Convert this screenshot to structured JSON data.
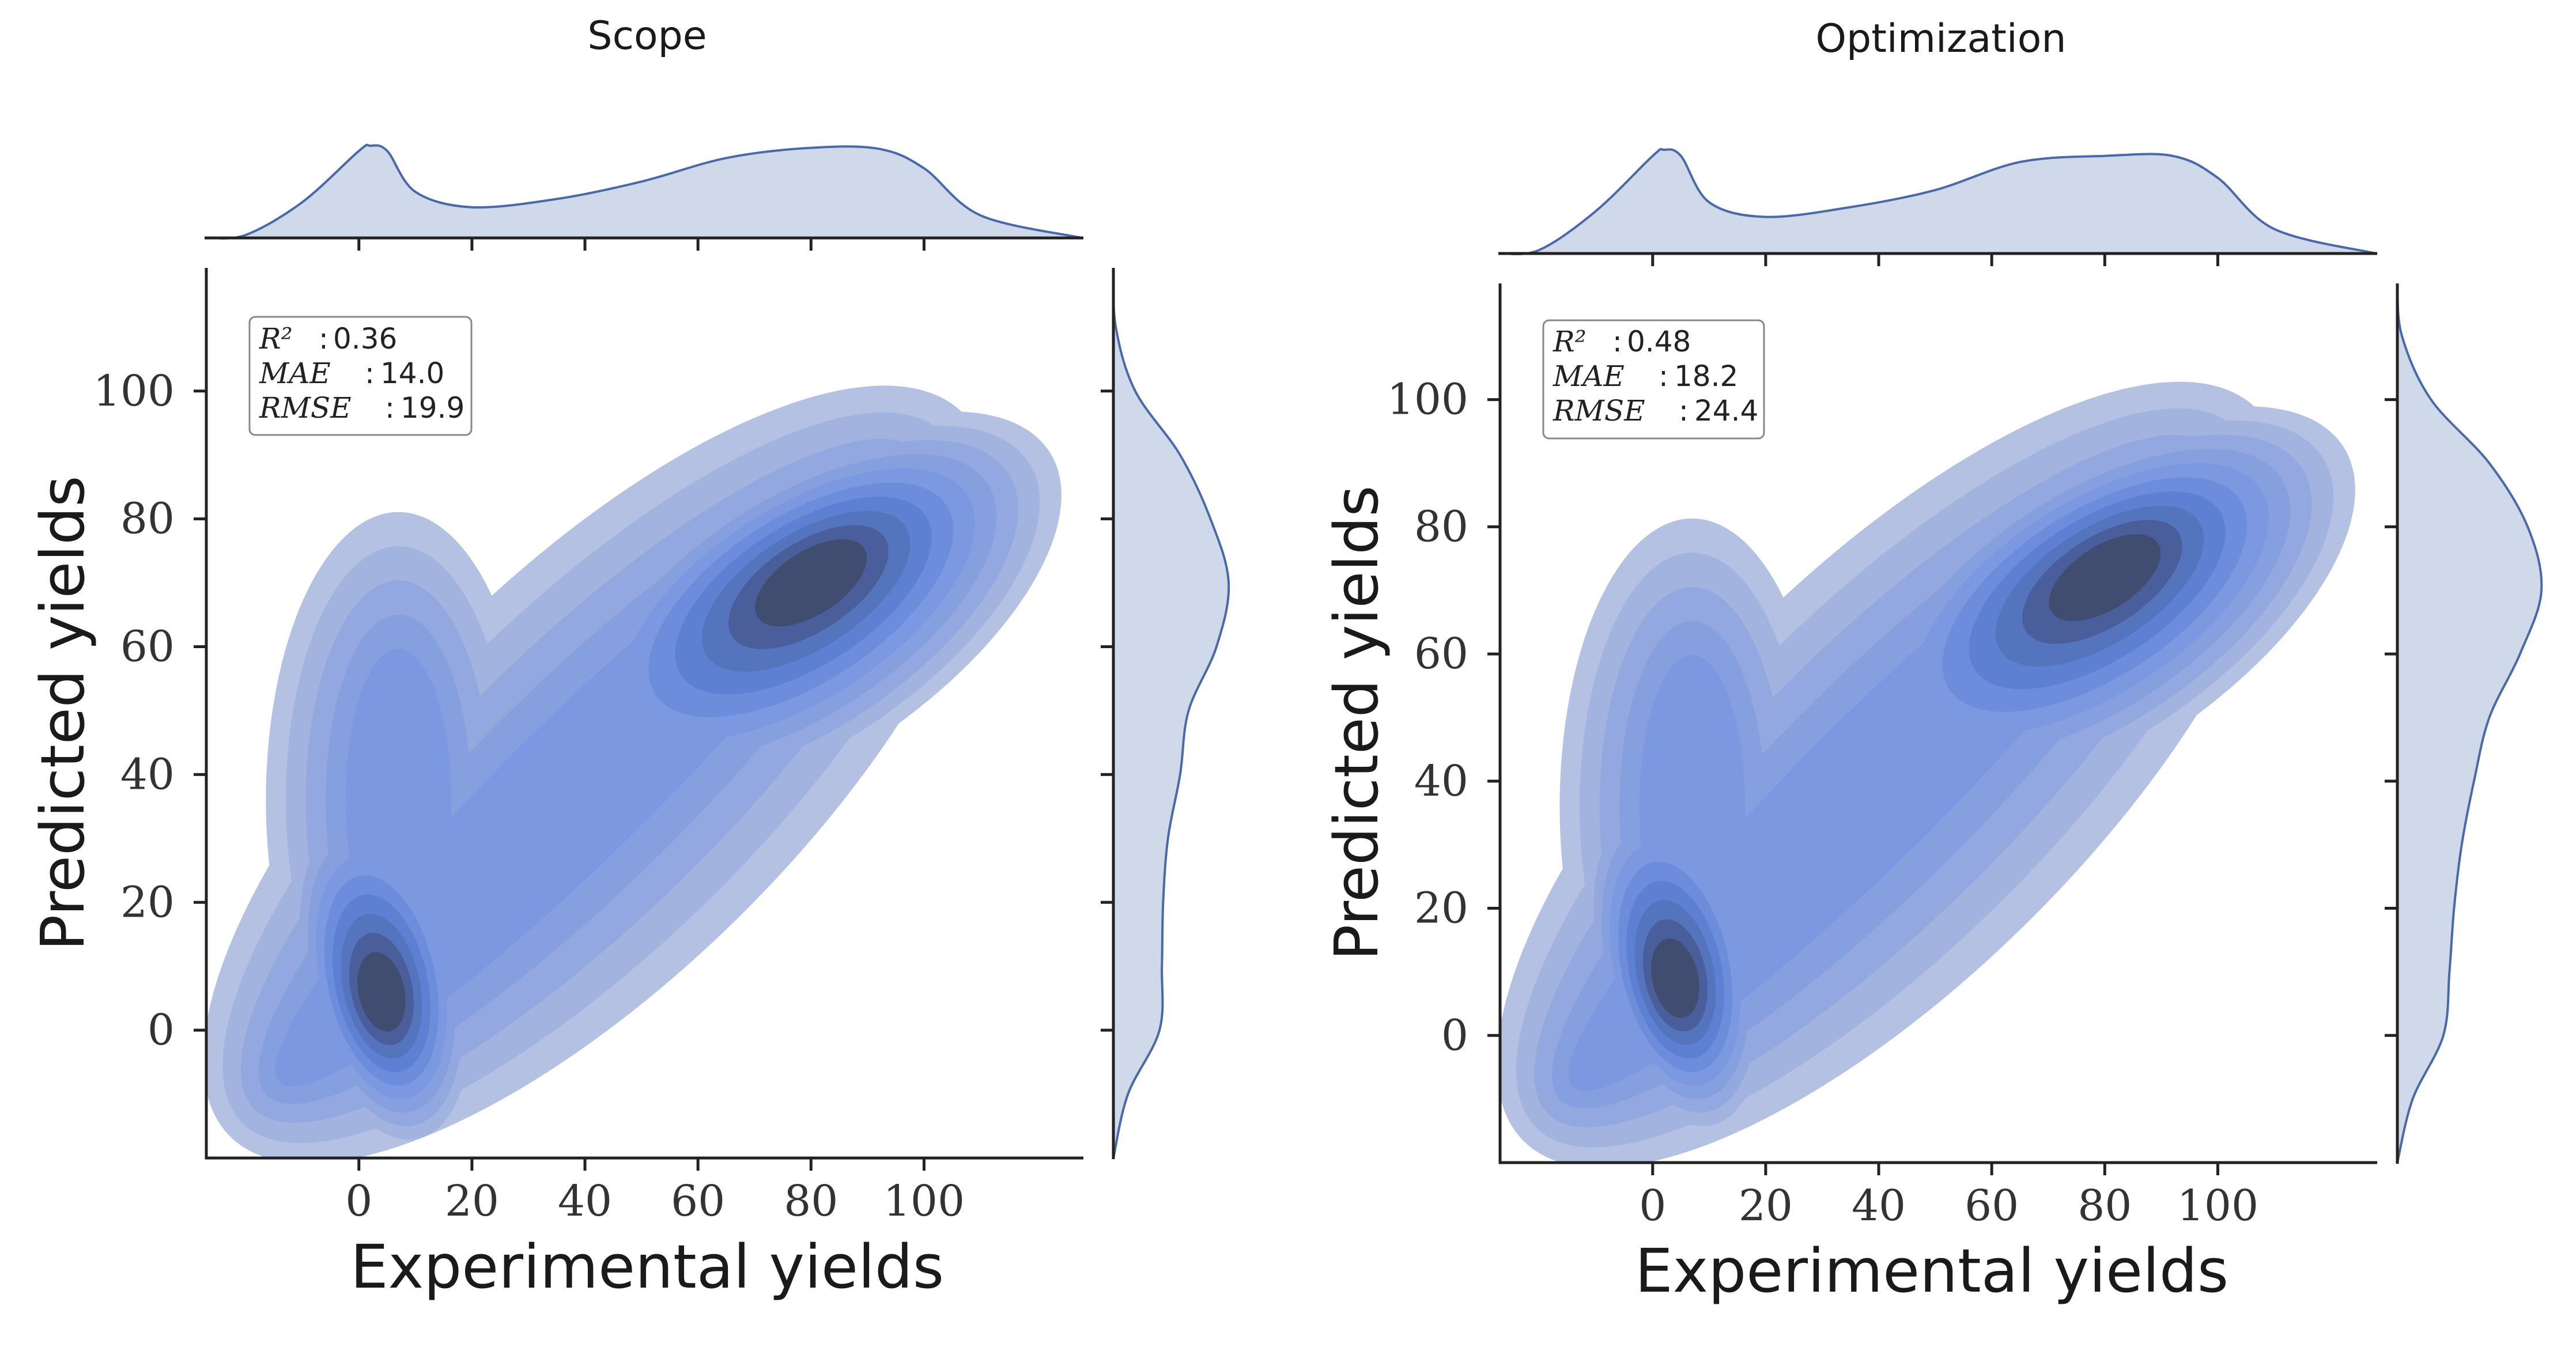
{
  "colors": {
    "contour_levels": [
      "#b5c1e2",
      "#a3b3e0",
      "#93a8de",
      "#869fdf",
      "#7b98e1",
      "#6c8cdc",
      "#5e80d2",
      "#5574be",
      "#4a5e9c",
      "#414d70"
    ],
    "marginal_fill": "#d0d9ea",
    "marginal_line": "#4a69a8"
  },
  "chart_data": [
    {
      "type": "kde-jointplot",
      "title": "Scope",
      "xlabel": "Experimental yields",
      "ylabel": "Predicted yields",
      "xlim": [
        -27,
        128
      ],
      "ylim": [
        -20,
        119
      ],
      "xticks": [
        0,
        20,
        40,
        60,
        80,
        100
      ],
      "yticks": [
        0,
        20,
        40,
        60,
        80,
        100
      ],
      "grid": false,
      "stats": [
        {
          "label": "R²",
          "value": "0.36"
        },
        {
          "label": "MAE",
          "value": "14.0"
        },
        {
          "label": "RMSE",
          "value": "19.9"
        }
      ],
      "density_peaks": [
        {
          "x": 80,
          "y": 70,
          "level": "highest"
        },
        {
          "x": 3,
          "y": 4,
          "level": "high"
        }
      ],
      "marginal_x": {
        "x": [
          -27,
          -20,
          -10,
          0,
          2,
          5,
          10,
          20,
          35,
          50,
          65,
          80,
          92,
          100,
          110,
          128
        ],
        "density": [
          0,
          0.03,
          0.35,
          0.85,
          0.9,
          0.85,
          0.45,
          0.3,
          0.38,
          0.55,
          0.78,
          0.88,
          0.87,
          0.68,
          0.22,
          0
        ]
      },
      "marginal_y": {
        "y": [
          -20,
          -10,
          0,
          10,
          20,
          30,
          40,
          50,
          60,
          70,
          80,
          90,
          100,
          110,
          119
        ],
        "density": [
          0,
          0.12,
          0.38,
          0.4,
          0.41,
          0.45,
          0.55,
          0.62,
          0.85,
          0.95,
          0.8,
          0.55,
          0.18,
          0.02,
          0
        ]
      }
    },
    {
      "type": "kde-jointplot",
      "title": "Optimization",
      "xlabel": "Experimental yields",
      "ylabel": "Predicted yields",
      "xlim": [
        -27,
        128
      ],
      "ylim": [
        -20,
        118
      ],
      "xticks": [
        0,
        20,
        40,
        60,
        80,
        100
      ],
      "yticks": [
        0,
        20,
        40,
        60,
        80,
        100
      ],
      "grid": false,
      "stats": [
        {
          "label": "R²",
          "value": "0.48"
        },
        {
          "label": "MAE",
          "value": "18.2"
        },
        {
          "label": "RMSE",
          "value": "24.4"
        }
      ],
      "density_peaks": [
        {
          "x": 80,
          "y": 72,
          "level": "highest"
        },
        {
          "x": 3,
          "y": 7,
          "level": "high"
        }
      ],
      "marginal_x": {
        "x": [
          -27,
          -20,
          -10,
          0,
          2,
          5,
          10,
          20,
          35,
          50,
          65,
          80,
          92,
          100,
          110,
          128
        ],
        "density": [
          0,
          0.03,
          0.35,
          0.8,
          0.85,
          0.8,
          0.42,
          0.3,
          0.38,
          0.52,
          0.75,
          0.8,
          0.8,
          0.62,
          0.2,
          0
        ]
      },
      "marginal_y": {
        "y": [
          -20,
          -10,
          0,
          10,
          20,
          30,
          40,
          50,
          60,
          70,
          80,
          90,
          100,
          110,
          118
        ],
        "density": [
          0,
          0.1,
          0.3,
          0.34,
          0.37,
          0.42,
          0.5,
          0.6,
          0.8,
          0.94,
          0.85,
          0.6,
          0.22,
          0.03,
          0
        ]
      }
    }
  ]
}
